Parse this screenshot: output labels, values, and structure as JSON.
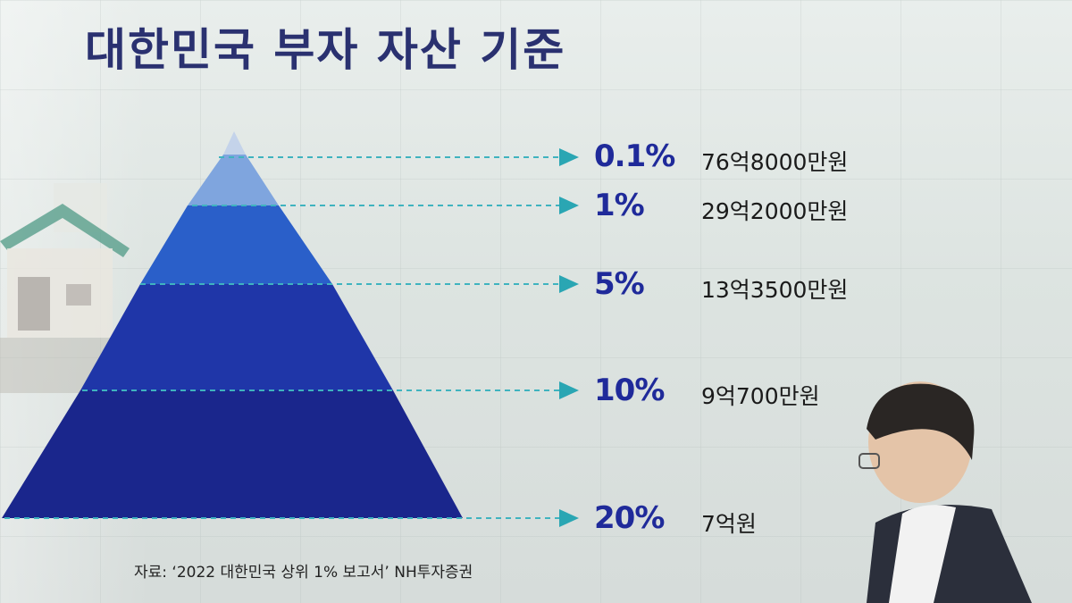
{
  "title": "대한민국 부자 자산 기준",
  "tiers": [
    {
      "percent": "0.1%",
      "amount": "76억8000만원"
    },
    {
      "percent": "1%",
      "amount": "29억2000만원"
    },
    {
      "percent": "5%",
      "amount": "13억3500만원"
    },
    {
      "percent": "10%",
      "amount": "9억700만원"
    },
    {
      "percent": "20%",
      "amount": "7억원"
    }
  ],
  "source": "자료: ‘2022 대한민국 상위 1% 보고서’ NH투자증권",
  "colors": {
    "title": "#2a3170",
    "percent_text": "#1f2a9a",
    "arrow": "#2aa6b3",
    "tier_0.1": "#c4d3ea",
    "tier_1": "#7fa5de",
    "tier_5": "#2a5fc9",
    "tier_10": "#1f36a8",
    "tier_20": "#1a268c"
  }
}
